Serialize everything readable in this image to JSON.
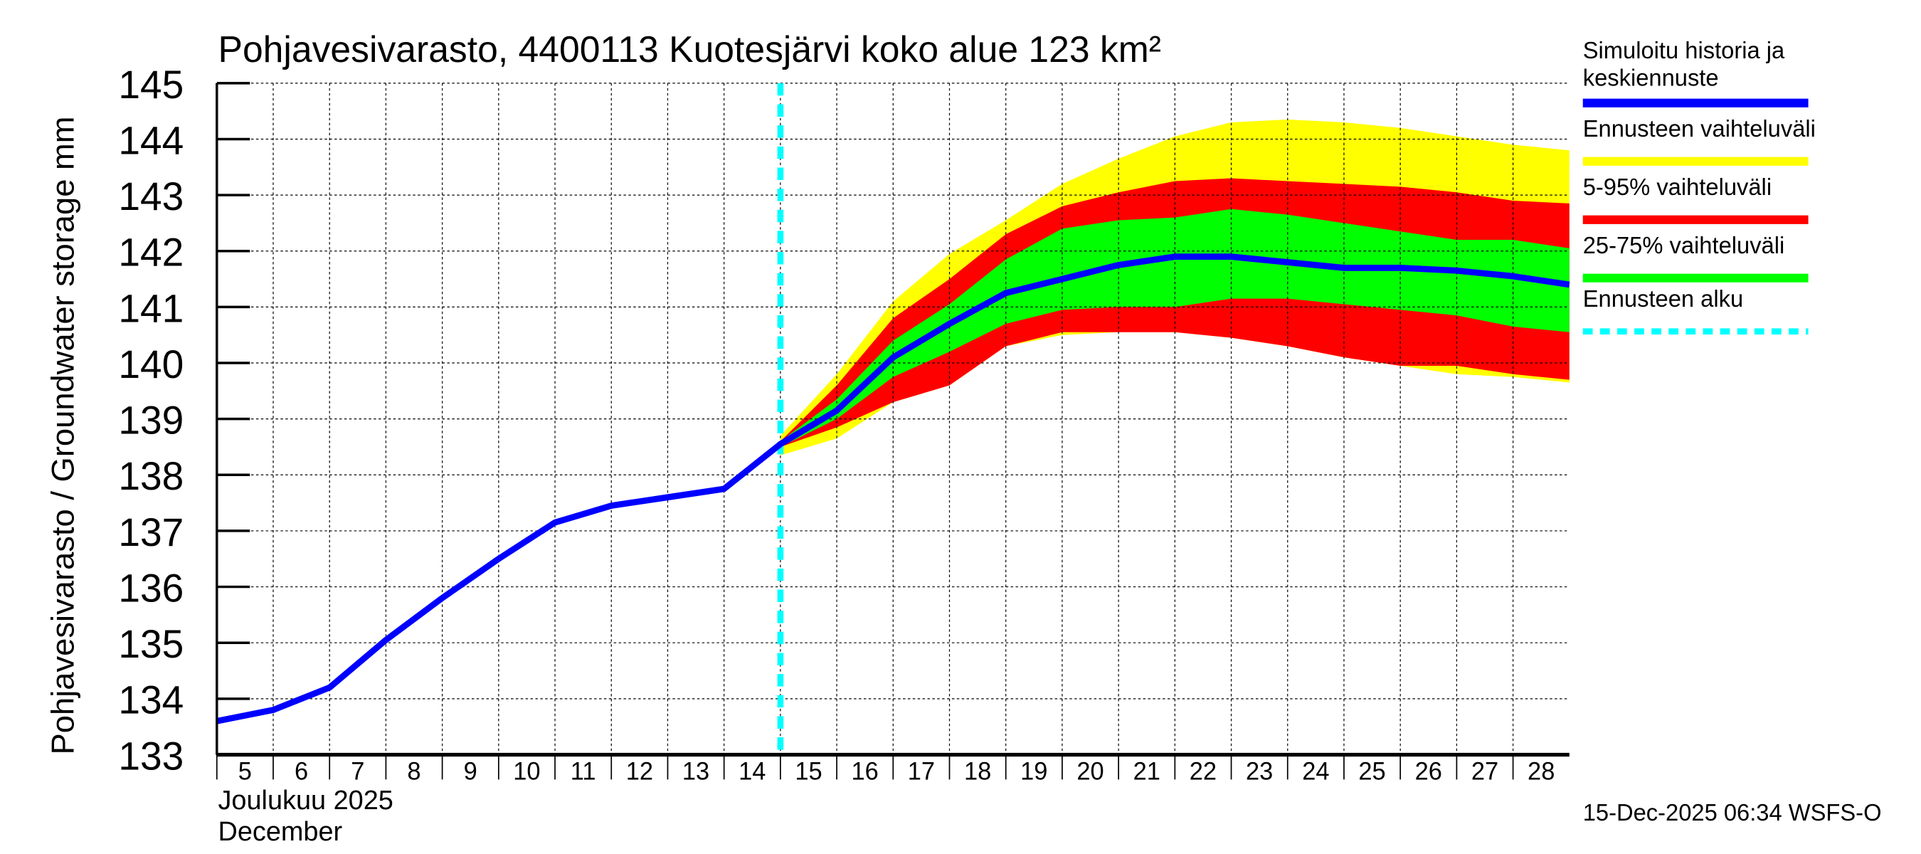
{
  "chart_data": {
    "type": "area",
    "title": "Pohjavesivarasto, 4400113 Kuotesjärvi koko alue 123 km²",
    "ylabel": "Pohjavesivarasto / Groundwater storage   mm",
    "xlabel_fi": "Joulukuu  2025",
    "xlabel_en": "December",
    "ylim": [
      133,
      145
    ],
    "xlim": [
      5,
      29
    ],
    "yticks": [
      133,
      134,
      135,
      136,
      137,
      138,
      139,
      140,
      141,
      142,
      143,
      144,
      145
    ],
    "xticks": [
      5,
      6,
      7,
      8,
      9,
      10,
      11,
      12,
      13,
      14,
      15,
      16,
      17,
      18,
      19,
      20,
      21,
      22,
      23,
      24,
      25,
      26,
      27,
      28
    ],
    "grid": true,
    "forecast_start": 15,
    "x": [
      5,
      6,
      7,
      8,
      9,
      10,
      11,
      12,
      13,
      14,
      15,
      16,
      17,
      18,
      19,
      20,
      21,
      22,
      23,
      24,
      25,
      26,
      27,
      28,
      29
    ],
    "series": [
      {
        "name": "Simuloitu historia ja keskiennuste",
        "color": "#0000ff",
        "values": [
          133.6,
          133.8,
          134.2,
          135.05,
          135.8,
          136.5,
          137.15,
          137.45,
          137.6,
          137.75,
          138.55,
          139.15,
          140.1,
          140.7,
          141.25,
          141.5,
          141.75,
          141.9,
          141.9,
          141.8,
          141.7,
          141.7,
          141.65,
          141.55,
          141.4
        ]
      }
    ],
    "bands": [
      {
        "name": "Ennusteen vaihteluväli",
        "color": "#ffff00",
        "x": [
          15,
          16,
          17,
          18,
          19,
          20,
          21,
          22,
          23,
          24,
          25,
          26,
          27,
          28,
          29
        ],
        "upper": [
          138.7,
          139.8,
          141.1,
          141.95,
          142.55,
          143.2,
          143.65,
          144.05,
          144.3,
          144.35,
          144.3,
          144.2,
          144.05,
          143.9,
          143.8
        ],
        "lower": [
          138.35,
          138.65,
          139.3,
          139.6,
          140.3,
          140.5,
          140.55,
          140.55,
          140.45,
          140.3,
          140.1,
          139.95,
          139.8,
          139.75,
          139.65
        ]
      },
      {
        "name": "5-95% vaihteluväli",
        "color": "#ff0000",
        "x": [
          15,
          16,
          17,
          18,
          19,
          20,
          21,
          22,
          23,
          24,
          25,
          26,
          27,
          28,
          29
        ],
        "upper": [
          138.6,
          139.6,
          140.8,
          141.5,
          142.3,
          142.8,
          143.05,
          143.25,
          143.3,
          143.25,
          143.2,
          143.15,
          143.05,
          142.9,
          142.85
        ],
        "lower": [
          138.5,
          138.85,
          139.3,
          139.6,
          140.3,
          140.55,
          140.55,
          140.55,
          140.45,
          140.3,
          140.1,
          139.95,
          139.95,
          139.8,
          139.7
        ]
      },
      {
        "name": "25-75% vaihteluväli",
        "color": "#00ff00",
        "x": [
          15,
          16,
          17,
          18,
          19,
          20,
          21,
          22,
          23,
          24,
          25,
          26,
          27,
          28,
          29
        ],
        "upper": [
          138.6,
          139.35,
          140.4,
          141.05,
          141.85,
          142.4,
          142.55,
          142.6,
          142.75,
          142.65,
          142.5,
          142.35,
          142.2,
          142.2,
          142.05
        ],
        "lower": [
          138.5,
          139.0,
          139.75,
          140.2,
          140.7,
          140.95,
          141.0,
          141.0,
          141.15,
          141.15,
          141.05,
          140.95,
          140.85,
          140.65,
          140.55
        ]
      }
    ],
    "legend": [
      {
        "label_line1": "Simuloitu historia ja",
        "label_line2": "keskiennuste",
        "color": "#0000ff",
        "style": "solid"
      },
      {
        "label_line1": "Ennusteen vaihteluväli",
        "color": "#ffff00",
        "style": "solid"
      },
      {
        "label_line1": "5-95% vaihteluväli",
        "color": "#ff0000",
        "style": "solid"
      },
      {
        "label_line1": "25-75% vaihteluväli",
        "color": "#00ff00",
        "style": "solid"
      },
      {
        "label_line1": "Ennusteen alku",
        "color": "#00ffff",
        "style": "dashed"
      }
    ],
    "legend_position": "right",
    "footer": "15-Dec-2025 06:34 WSFS-O"
  }
}
